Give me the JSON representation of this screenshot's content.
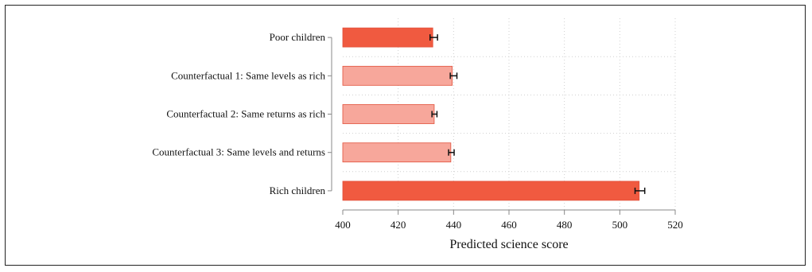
{
  "chart_data": {
    "type": "bar",
    "orientation": "horizontal",
    "categories": [
      "Poor children",
      "Counterfactual 1: Same levels as rich",
      "Counterfactual 2: Same returns as rich",
      "Counterfactual 3: Same levels and returns",
      "Rich children"
    ],
    "values": [
      432.5,
      439.5,
      433.0,
      439.0,
      507.0
    ],
    "error_low": [
      431.5,
      438.8,
      432.2,
      438.2,
      505.5
    ],
    "error_high": [
      434.2,
      441.2,
      434.0,
      440.2,
      509.0
    ],
    "bar_colors": [
      "#f05a40",
      "#f7a79b",
      "#f7a79b",
      "#f7a79b",
      "#f05a40"
    ],
    "bar_edge_color": "#e2503a",
    "xlabel": "Predicted science score",
    "ylabel": "",
    "title": "",
    "xlim": [
      400,
      520
    ],
    "xticks": [
      400,
      420,
      440,
      460,
      480,
      500,
      520
    ],
    "grid": true,
    "grid_style": "dotted"
  }
}
